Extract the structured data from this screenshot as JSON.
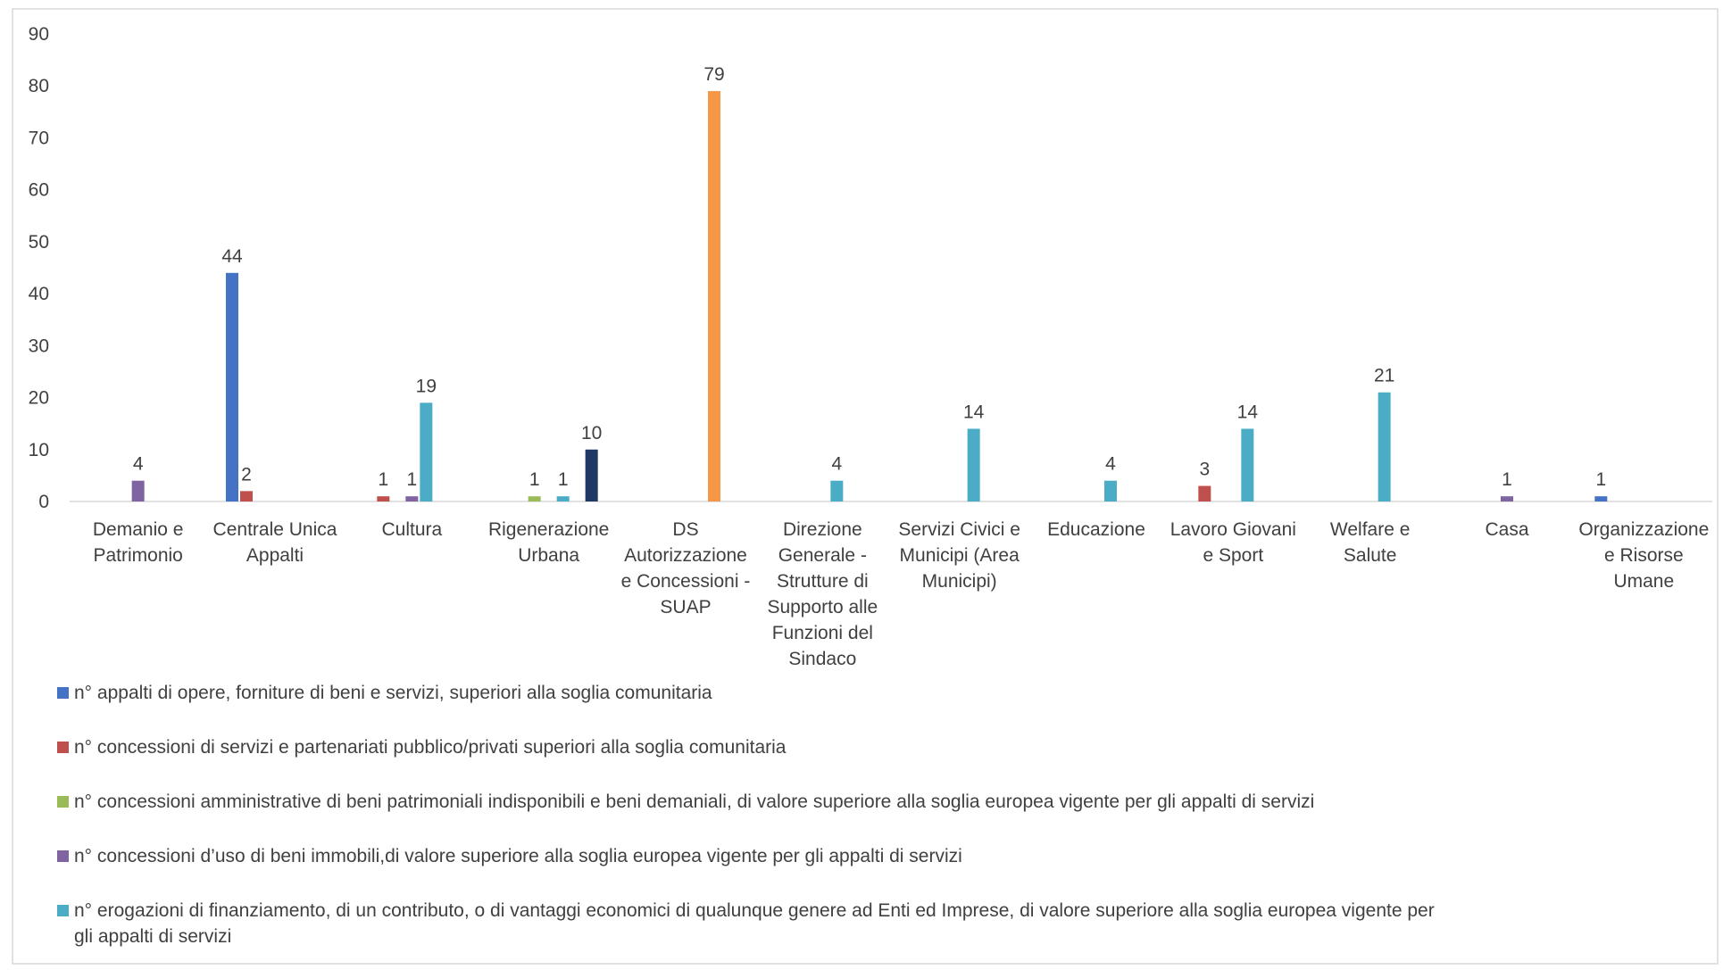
{
  "chart_data": {
    "type": "bar",
    "categories": [
      [
        "Demanio e",
        "Patrimonio"
      ],
      [
        "Centrale Unica",
        "Appalti"
      ],
      [
        "Cultura"
      ],
      [
        "Rigenerazione",
        "Urbana"
      ],
      [
        "DS",
        "Autorizzazione",
        "e Concessioni -",
        "SUAP"
      ],
      [
        "Direzione",
        "Generale -",
        "Strutture di",
        "Supporto alle",
        "Funzioni del",
        "Sindaco"
      ],
      [
        "Servizi Civici e",
        "Municipi  (Area",
        "Municipi)"
      ],
      [
        "Educazione"
      ],
      [
        "Lavoro Giovani",
        "e Sport"
      ],
      [
        "Welfare e",
        "Salute"
      ],
      [
        "Casa"
      ],
      [
        "Organizzazione",
        "e Risorse",
        "Umane"
      ]
    ],
    "ylim": [
      0,
      90
    ],
    "yticks": [
      "0",
      "10",
      "20",
      "30",
      "40",
      "50",
      "60",
      "70",
      "80",
      "90"
    ],
    "grid": false,
    "legend_position": "bottom",
    "series": [
      {
        "name": "n° appalti di opere, forniture di beni e servizi, superiori alla soglia comunitaria",
        "color": "#4472C4",
        "values": [
          null,
          44,
          null,
          null,
          null,
          null,
          null,
          null,
          null,
          null,
          null,
          1
        ]
      },
      {
        "name": "n° concessioni di servizi e partenariati pubblico/privati superiori alla soglia comunitaria",
        "color": "#C0504D",
        "values": [
          null,
          2,
          1,
          null,
          null,
          null,
          null,
          null,
          3,
          null,
          null,
          null
        ]
      },
      {
        "name": "n° concessioni amministrative di beni patrimoniali indisponibili e beni demaniali, di valore superiore alla soglia europea vigente per gli appalti di servizi",
        "color": "#9BBB59",
        "values": [
          null,
          null,
          null,
          1,
          null,
          null,
          null,
          null,
          null,
          null,
          null,
          null
        ]
      },
      {
        "name": "n° concessioni d’uso di beni immobili,di valore superiore alla soglia europea vigente per gli appalti di servizi",
        "color": "#8064A2",
        "values": [
          4,
          null,
          1,
          null,
          null,
          null,
          null,
          null,
          null,
          null,
          1,
          null
        ]
      },
      {
        "name": "n° erogazioni di finanziamento, di un contributo, o di vantaggi economici di qualunque genere ad Enti ed Imprese, di valore superiore alla soglia europea vigente per gli appalti di servizi",
        "color": "#4BACC6",
        "values": [
          null,
          null,
          19,
          1,
          null,
          4,
          14,
          4,
          14,
          21,
          null,
          null
        ]
      },
      {
        "color": "#F79646",
        "values": [
          null,
          null,
          null,
          null,
          79,
          null,
          null,
          null,
          null,
          null,
          null,
          null
        ]
      },
      {
        "color": "#1F3864",
        "values": [
          null,
          null,
          null,
          10,
          null,
          null,
          null,
          null,
          null,
          null,
          null,
          null
        ]
      }
    ]
  }
}
